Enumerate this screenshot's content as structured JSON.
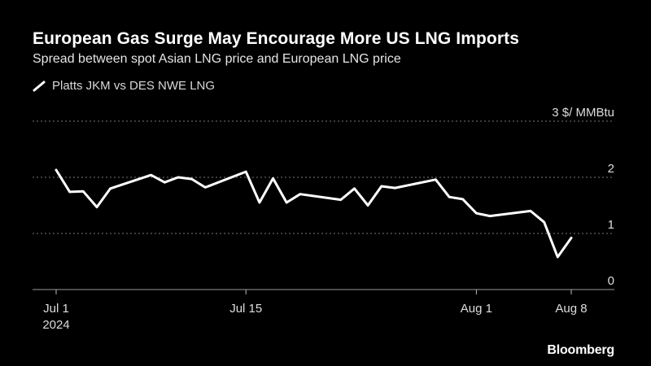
{
  "title": "European Gas Surge May Encourage More US LNG Imports",
  "subtitle": "Spread between spot Asian LNG price and European LNG price",
  "source": "Bloomberg",
  "colors": {
    "background": "#000000",
    "line": "#ffffff",
    "grid": "#777777",
    "text": "#ffffff"
  },
  "chart_data": {
    "type": "line",
    "title": "European Gas Surge May Encourage More US LNG Imports",
    "subtitle": "Spread between spot Asian LNG price and European LNG price",
    "ylabel": "3 $/ MMBtu",
    "ylim": [
      0,
      3
    ],
    "yticks": [
      {
        "value": 3,
        "label": "3 $/ MMBtu"
      },
      {
        "value": 2,
        "label": "2"
      },
      {
        "value": 1,
        "label": "1"
      },
      {
        "value": 0,
        "label": "0"
      }
    ],
    "xlim": [
      "2024-07-01",
      "2024-08-09"
    ],
    "xticks": [
      {
        "date": "2024-07-01",
        "label": "Jul 1",
        "sublabel": "2024"
      },
      {
        "date": "2024-07-15",
        "label": "Jul 15"
      },
      {
        "date": "2024-08-01",
        "label": "Aug 1"
      },
      {
        "date": "2024-08-08",
        "label": "Aug 8"
      }
    ],
    "grid": true,
    "legend_position": "top-left",
    "series": [
      {
        "name": "Platts JKM vs DES NWE LNG",
        "color": "#ffffff",
        "x": [
          "2024-07-01",
          "2024-07-02",
          "2024-07-03",
          "2024-07-04",
          "2024-07-05",
          "2024-07-08",
          "2024-07-09",
          "2024-07-10",
          "2024-07-11",
          "2024-07-12",
          "2024-07-15",
          "2024-07-16",
          "2024-07-17",
          "2024-07-18",
          "2024-07-19",
          "2024-07-22",
          "2024-07-23",
          "2024-07-24",
          "2024-07-25",
          "2024-07-26",
          "2024-07-29",
          "2024-07-30",
          "2024-07-31",
          "2024-08-01",
          "2024-08-02",
          "2024-08-05",
          "2024-08-06",
          "2024-08-07",
          "2024-08-08"
        ],
        "values": [
          2.13,
          1.74,
          1.75,
          1.47,
          1.8,
          2.04,
          1.91,
          2.0,
          1.97,
          1.82,
          2.1,
          1.55,
          1.98,
          1.55,
          1.7,
          1.6,
          1.8,
          1.5,
          1.84,
          1.81,
          1.96,
          1.65,
          1.61,
          1.36,
          1.31,
          1.4,
          1.2,
          0.58,
          0.92
        ]
      }
    ]
  }
}
